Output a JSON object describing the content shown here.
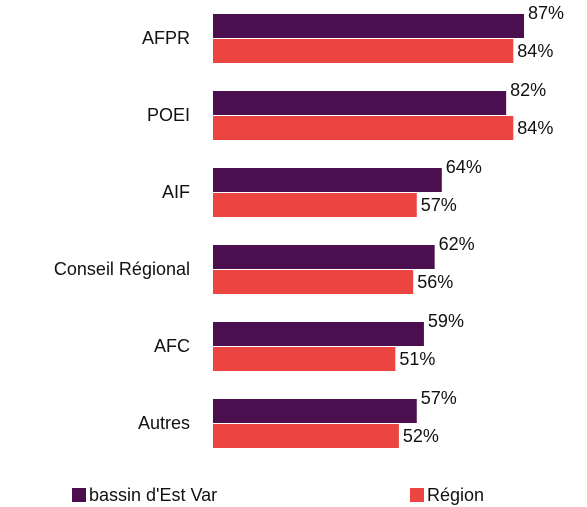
{
  "chart_data": {
    "type": "hbar",
    "categories": [
      "AFPR",
      "POEI",
      "AIF",
      "Conseil Régional",
      "AFC",
      "Autres"
    ],
    "series": [
      {
        "name": "bassin d'Est Var",
        "color": "#4b0f50",
        "values": [
          87,
          82,
          64,
          62,
          59,
          57
        ],
        "value_labels": [
          "87%",
          "82%",
          "64%",
          "62%",
          "59%",
          "57%"
        ]
      },
      {
        "name": "Région",
        "color": "#ec4440",
        "values": [
          84,
          84,
          57,
          56,
          51,
          52
        ],
        "value_labels": [
          "84%",
          "84%",
          "57%",
          "56%",
          "51%",
          "52%"
        ]
      }
    ],
    "legend": "bottom"
  }
}
